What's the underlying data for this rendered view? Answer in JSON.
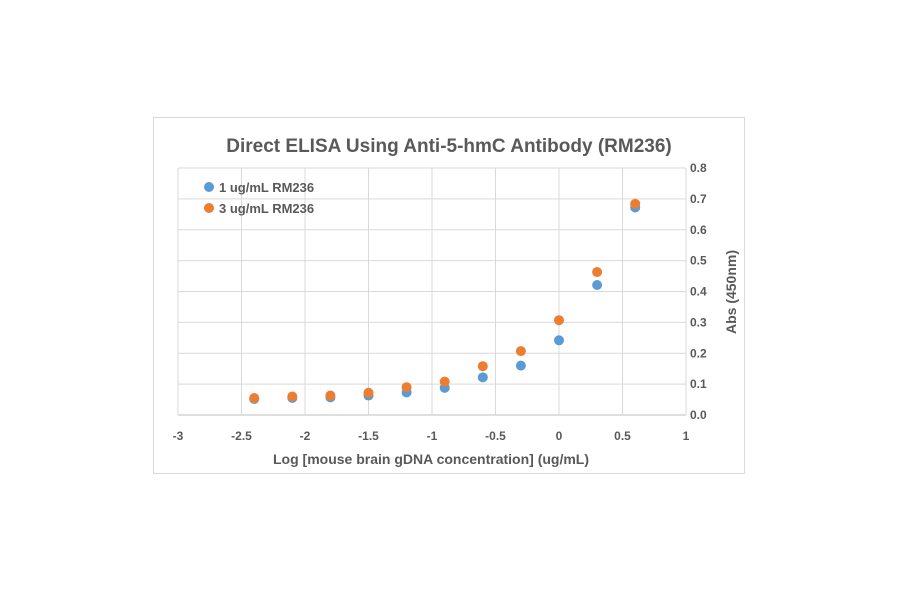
{
  "chart_data": {
    "type": "scatter",
    "title": "Direct ELISA Using Anti-5-hmC Antibody (RM236)",
    "xlabel": "Log [mouse brain gDNA concentration] (ug/mL)",
    "ylabel": "Abs (450nm)",
    "xlim": [
      -3,
      1
    ],
    "ylim": [
      0,
      0.8
    ],
    "x_ticks": [
      "-3",
      "-2.5",
      "-2",
      "-1.5",
      "-1",
      "-0.5",
      "0",
      "0.5",
      "1"
    ],
    "y_ticks": [
      "0.0",
      "0.1",
      "0.2",
      "0.3",
      "0.4",
      "0.5",
      "0.6",
      "0.7",
      "0.8"
    ],
    "y_axis_position": "right",
    "grid": true,
    "legend_position": "top-left",
    "series": [
      {
        "name": "1 ug/mL RM236",
        "color": "#5b9bd5",
        "x": [
          -2.4,
          -2.1,
          -1.8,
          -1.5,
          -1.2,
          -0.9,
          -0.6,
          -0.3,
          0,
          0.3,
          0.6
        ],
        "y": [
          0.052,
          0.055,
          0.057,
          0.063,
          0.073,
          0.088,
          0.122,
          0.16,
          0.242,
          0.421,
          0.672
        ]
      },
      {
        "name": "3 ug/mL RM236",
        "color": "#ed7d31",
        "x": [
          -2.4,
          -2.1,
          -1.8,
          -1.5,
          -1.2,
          -0.9,
          -0.6,
          -0.3,
          0,
          0.3,
          0.6
        ],
        "y": [
          0.055,
          0.06,
          0.063,
          0.072,
          0.09,
          0.108,
          0.158,
          0.207,
          0.307,
          0.463,
          0.684
        ]
      }
    ]
  }
}
